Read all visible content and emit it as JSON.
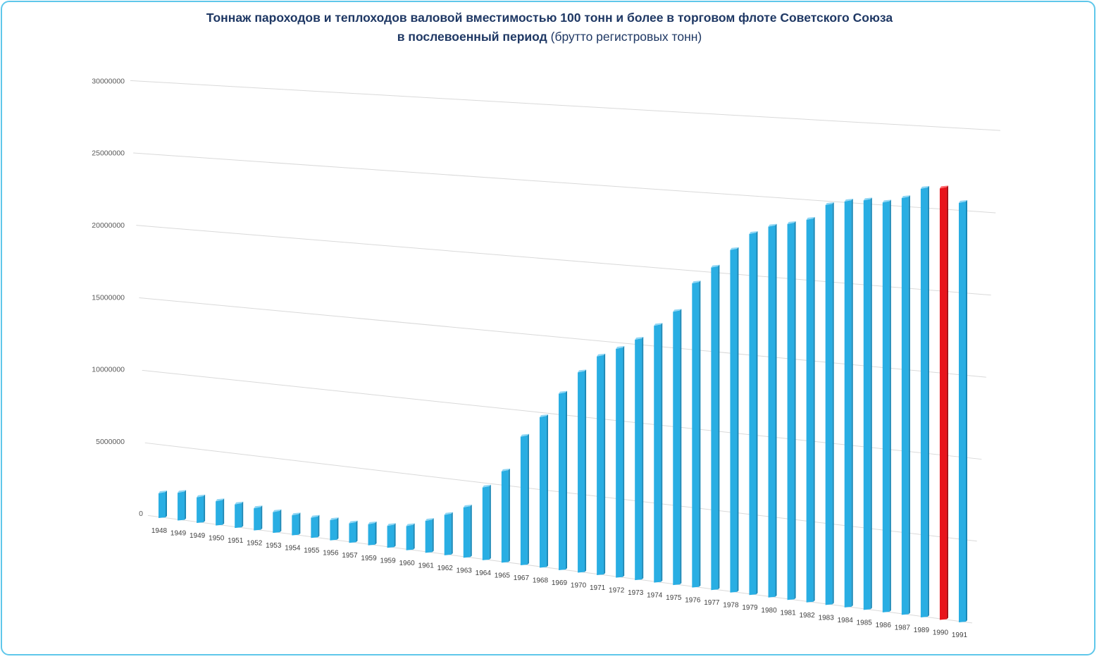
{
  "chart_data": {
    "type": "bar",
    "title_line1": "Тоннаж  пароходов  и теплоходов  валовой  вместимостью  100 тонн  и более в торговом  флоте Советского  Союза",
    "title_line2_bold": "в послевоенный  период",
    "title_line2_normal": " (брутто регистровых тонн)",
    "xlabel": "",
    "ylabel": "",
    "ylim": [
      0,
      30000000
    ],
    "yticks": [
      "0",
      "5000000",
      "10000000",
      "15000000",
      "20000000",
      "25000000",
      "30000000"
    ],
    "grid": true,
    "bar_color": "#29aee3",
    "highlight_color": "#e8141b",
    "categories": [
      "1948",
      "1949",
      "1949",
      "1950",
      "1951",
      "1952",
      "1953",
      "1954",
      "1955",
      "1956",
      "1957",
      "1959",
      "1959",
      "1960",
      "1961",
      "1962",
      "1963",
      "1964",
      "1965",
      "1967",
      "1968",
      "1969",
      "1970",
      "1971",
      "1972",
      "1973",
      "1974",
      "1975",
      "1976",
      "1977",
      "1978",
      "1979",
      "1980",
      "1981",
      "1982",
      "1983",
      "1984",
      "1985",
      "1986",
      "1987",
      "1989",
      "1990",
      "1991"
    ],
    "values": [
      1750000,
      1950000,
      1800000,
      1700000,
      1650000,
      1550000,
      1450000,
      1400000,
      1400000,
      1400000,
      1350000,
      1450000,
      1500000,
      1650000,
      2150000,
      2700000,
      3350000,
      4800000,
      6000000,
      8400000,
      9800000,
      11450000,
      12950000,
      14100000,
      14700000,
      15400000,
      16400000,
      17400000,
      19300000,
      20400000,
      21600000,
      22700000,
      23250000,
      23500000,
      23850000,
      24850000,
      25150000,
      25300000,
      25250000,
      25600000,
      26250000,
      26350000,
      25550000
    ],
    "highlight_index": 41
  }
}
